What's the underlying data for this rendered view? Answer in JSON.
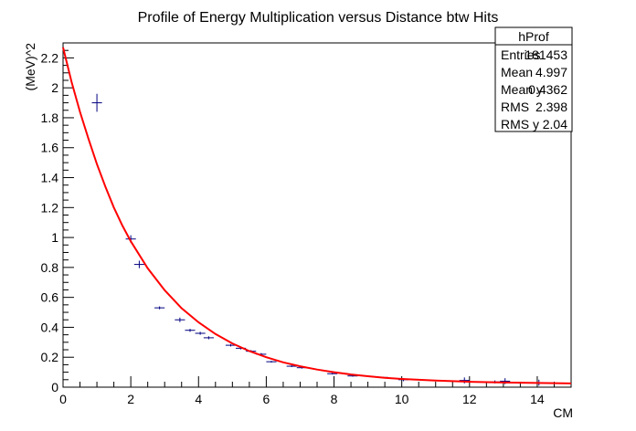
{
  "chart_data": {
    "type": "scatter",
    "title": "Profile of Energy Multiplication versus Distance btw Hits",
    "xlabel": "CM",
    "ylabel": "(MeV)^2",
    "xlim": [
      0,
      15
    ],
    "ylim": [
      0,
      2.3
    ],
    "x_ticks": [
      "0",
      "2",
      "4",
      "6",
      "8",
      "10",
      "12",
      "14"
    ],
    "y_ticks": [
      "0",
      "0.2",
      "0.4",
      "0.6",
      "0.8",
      "1",
      "1.2",
      "1.4",
      "1.6",
      "1.8",
      "2",
      "2.2"
    ],
    "grid": false,
    "series": [
      {
        "kind": "profile",
        "color": "#000080",
        "x": [
          1.0,
          2.0,
          2.25,
          2.85,
          3.45,
          3.75,
          4.05,
          4.3,
          4.95,
          5.25,
          5.55,
          5.85,
          6.15,
          6.75,
          7.05,
          7.95,
          8.55,
          9.15,
          9.45,
          10.05,
          11.85,
          12.75,
          13.05,
          14.05
        ],
        "y": [
          1.9,
          0.99,
          0.82,
          0.53,
          0.45,
          0.38,
          0.36,
          0.33,
          0.28,
          0.26,
          0.24,
          0.22,
          0.17,
          0.14,
          0.13,
          0.09,
          0.075,
          0.07,
          0.065,
          0.05,
          0.045,
          0.035,
          0.04,
          0.03
        ],
        "xerr": [
          0.15,
          0.15,
          0.15,
          0.15,
          0.15,
          0.15,
          0.15,
          0.15,
          0.15,
          0.15,
          0.15,
          0.15,
          0.15,
          0.15,
          0.15,
          0.15,
          0.15,
          0.15,
          0.15,
          0.15,
          0.15,
          0.15,
          0.15,
          0.15
        ],
        "yerr": [
          0.06,
          0.025,
          0.025,
          0.01,
          0.015,
          0.01,
          0.01,
          0.01,
          0.008,
          0.008,
          0.008,
          0.008,
          0.006,
          0.006,
          0.006,
          0.005,
          0.005,
          0.005,
          0.005,
          0.01,
          0.02,
          0.01,
          0.02,
          0.02
        ]
      },
      {
        "kind": "fit",
        "color": "#ff0000",
        "x": [
          0,
          0.25,
          0.5,
          0.75,
          1,
          1.25,
          1.5,
          1.75,
          2,
          2.5,
          3,
          3.5,
          4,
          4.5,
          5,
          5.5,
          6,
          6.5,
          7,
          7.5,
          8,
          8.5,
          9,
          9.5,
          10,
          11,
          12,
          13,
          14,
          15
        ],
        "y": [
          2.27,
          2.04,
          1.84,
          1.66,
          1.49,
          1.34,
          1.2,
          1.08,
          0.975,
          0.794,
          0.648,
          0.528,
          0.433,
          0.355,
          0.292,
          0.241,
          0.2,
          0.166,
          0.14,
          0.118,
          0.1,
          0.085,
          0.073,
          0.063,
          0.055,
          0.044,
          0.036,
          0.031,
          0.028,
          0.025
        ]
      }
    ],
    "legend": "none"
  },
  "stats": {
    "name": "hProf",
    "rows": [
      {
        "label": "Entries",
        "value": "181453"
      },
      {
        "label": "Mean",
        "value": "4.997"
      },
      {
        "label": "Mean y",
        "value": "0.4362"
      },
      {
        "label": "RMS",
        "value": "2.398"
      },
      {
        "label": "RMS y",
        "value": "2.04"
      }
    ]
  }
}
